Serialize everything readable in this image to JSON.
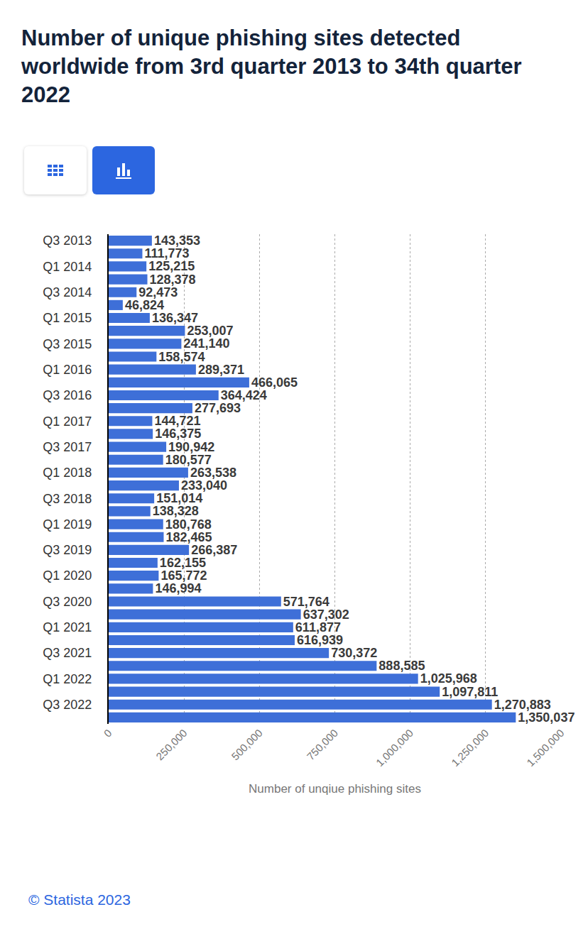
{
  "chart_data": {
    "type": "bar",
    "orientation": "horizontal",
    "title": "Number of unique phishing sites detected worldwide from 3rd quarter 2013 to 34th quarter 2022",
    "x_label": "Number of unqiue phishing sites",
    "source": "© Statista 2023",
    "categories": [
      "Q3 2013",
      null,
      "Q1 2014",
      null,
      "Q3 2014",
      null,
      "Q1 2015",
      null,
      "Q3 2015",
      null,
      "Q1 2016",
      null,
      "Q3 2016",
      null,
      "Q1 2017",
      null,
      "Q3 2017",
      null,
      "Q1 2018",
      null,
      "Q3 2018",
      null,
      "Q1 2019",
      null,
      "Q3 2019",
      null,
      "Q1 2020",
      null,
      "Q3 2020",
      null,
      "Q1 2021",
      null,
      "Q3 2021",
      null,
      "Q1 2022",
      null,
      "Q3 2022",
      null
    ],
    "values": [
      143353,
      111773,
      125215,
      128378,
      92473,
      46824,
      136347,
      253007,
      241140,
      158574,
      289371,
      466065,
      364424,
      277693,
      144721,
      146375,
      190942,
      180577,
      263538,
      233040,
      151014,
      138328,
      180768,
      182465,
      266387,
      162155,
      165772,
      146994,
      571764,
      637302,
      611877,
      616939,
      730372,
      888585,
      1025968,
      1097811,
      1270883,
      1350037
    ],
    "value_labels": [
      "143,353",
      "111,773",
      "125,215",
      "128,378",
      "92,473",
      "46,824",
      "136,347",
      "253,007",
      "241,140",
      "158,574",
      "289,371",
      "466,065",
      "364,424",
      "277,693",
      "144,721",
      "146,375",
      "190,942",
      "180,577",
      "263,538",
      "233,040",
      "151,014",
      "138,328",
      "180,768",
      "182,465",
      "266,387",
      "162,155",
      "165,772",
      "146,994",
      "571,764",
      "637,302",
      "611,877",
      "616,939",
      "730,372",
      "888,585",
      "1,025,968",
      "1,097,811",
      "1,270,883",
      "1,350,037"
    ],
    "data_labels": true,
    "color": "#3e6fd8",
    "xlim": [
      0,
      1500000
    ],
    "xticks": [
      0,
      {
        "value": 250000,
        "label": "250,000"
      },
      {
        "value": 500000,
        "label": "500,000"
      },
      {
        "value": 750000,
        "label": "750,000"
      },
      {
        "value": 1000000,
        "label": "1,000,000"
      },
      {
        "value": 1250000,
        "label": "1,250,000"
      },
      {
        "value": 1500000,
        "label": "1,500,000"
      }
    ],
    "grid": true
  }
}
